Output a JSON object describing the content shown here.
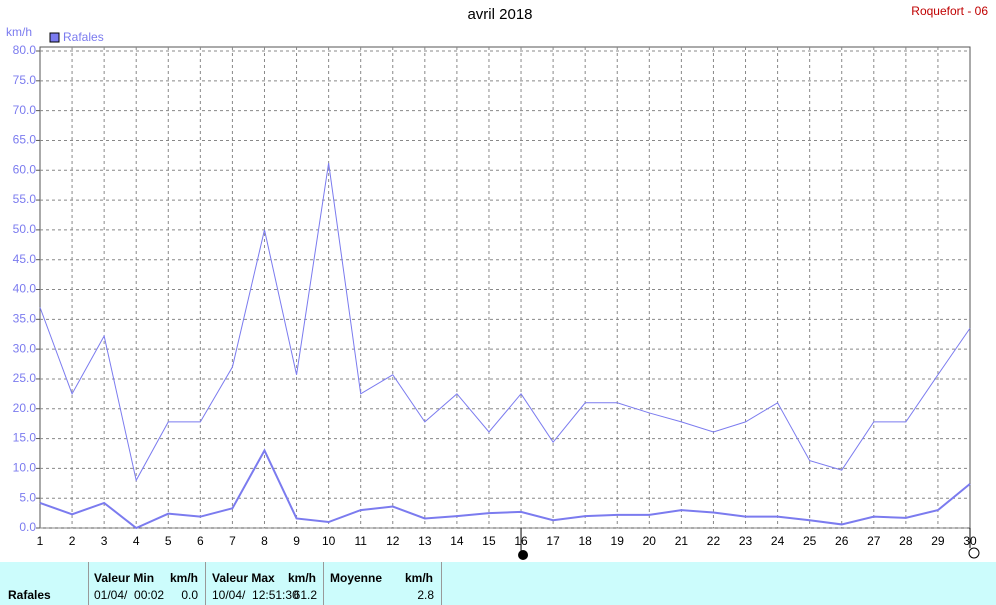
{
  "chart_data": {
    "type": "line",
    "title": "avril 2018",
    "station": "Roquefort - 06",
    "y_label": "km/h",
    "categories": [
      "1",
      "2",
      "3",
      "4",
      "5",
      "6",
      "7",
      "8",
      "9",
      "10",
      "11",
      "12",
      "13",
      "14",
      "15",
      "16",
      "17",
      "18",
      "19",
      "20",
      "21",
      "22",
      "23",
      "24",
      "25",
      "26",
      "27",
      "28",
      "29",
      "30"
    ],
    "series": [
      {
        "name": "Rafales",
        "color": "#7b7bef",
        "width": 1,
        "values": [
          37.0,
          22.5,
          32.2,
          8.0,
          17.8,
          17.8,
          27.0,
          50.0,
          25.7,
          61.2,
          22.5,
          25.7,
          17.8,
          22.5,
          16.1,
          22.5,
          14.4,
          21.0,
          21.0,
          19.3,
          17.8,
          16.1,
          17.8,
          21.0,
          11.3,
          9.7,
          17.8,
          17.8,
          25.7,
          33.5
        ]
      },
      {
        "color": "#7b7bef",
        "width": 2,
        "values": [
          4.2,
          2.3,
          4.2,
          0.0,
          2.4,
          1.9,
          3.3,
          13.0,
          1.6,
          1.0,
          3.0,
          3.6,
          1.6,
          2.0,
          2.5,
          2.7,
          1.3,
          2.0,
          2.2,
          2.2,
          3.0,
          2.6,
          1.9,
          1.9,
          1.3,
          0.6,
          1.9,
          1.7,
          3.0,
          7.4
        ]
      }
    ],
    "ylim": [
      0,
      80
    ],
    "yticks": [
      {
        "value": 0,
        "label": "0.0"
      },
      {
        "value": 5,
        "label": "5.0"
      },
      {
        "value": 10,
        "label": "10.0"
      },
      {
        "value": 15,
        "label": "15.0"
      },
      {
        "value": 20,
        "label": "20.0"
      },
      {
        "value": 25,
        "label": "25.0"
      },
      {
        "value": 30,
        "label": "30.0"
      },
      {
        "value": 35,
        "label": "35.0"
      },
      {
        "value": 40,
        "label": "40.0"
      },
      {
        "value": 45,
        "label": "45.0"
      },
      {
        "value": 50,
        "label": "50.0"
      },
      {
        "value": 55,
        "label": "55.0"
      },
      {
        "value": 60,
        "label": "60.0"
      },
      {
        "value": 65,
        "label": "65.0"
      },
      {
        "value": 70,
        "label": "70.0"
      },
      {
        "value": 75,
        "label": "75.0"
      },
      {
        "value": 80,
        "label": "80.0"
      }
    ],
    "grid": true,
    "legend": "top-left"
  },
  "table": {
    "header": [
      "Valeur Min",
      "km/h",
      "Valeur Max",
      "km/h",
      "Moyenne",
      "km/h"
    ],
    "rows": [
      [
        "Rafales",
        "01/04/  00:02",
        "0.0",
        "10/04/  12:51:30",
        "61.2",
        "2.8"
      ]
    ]
  }
}
